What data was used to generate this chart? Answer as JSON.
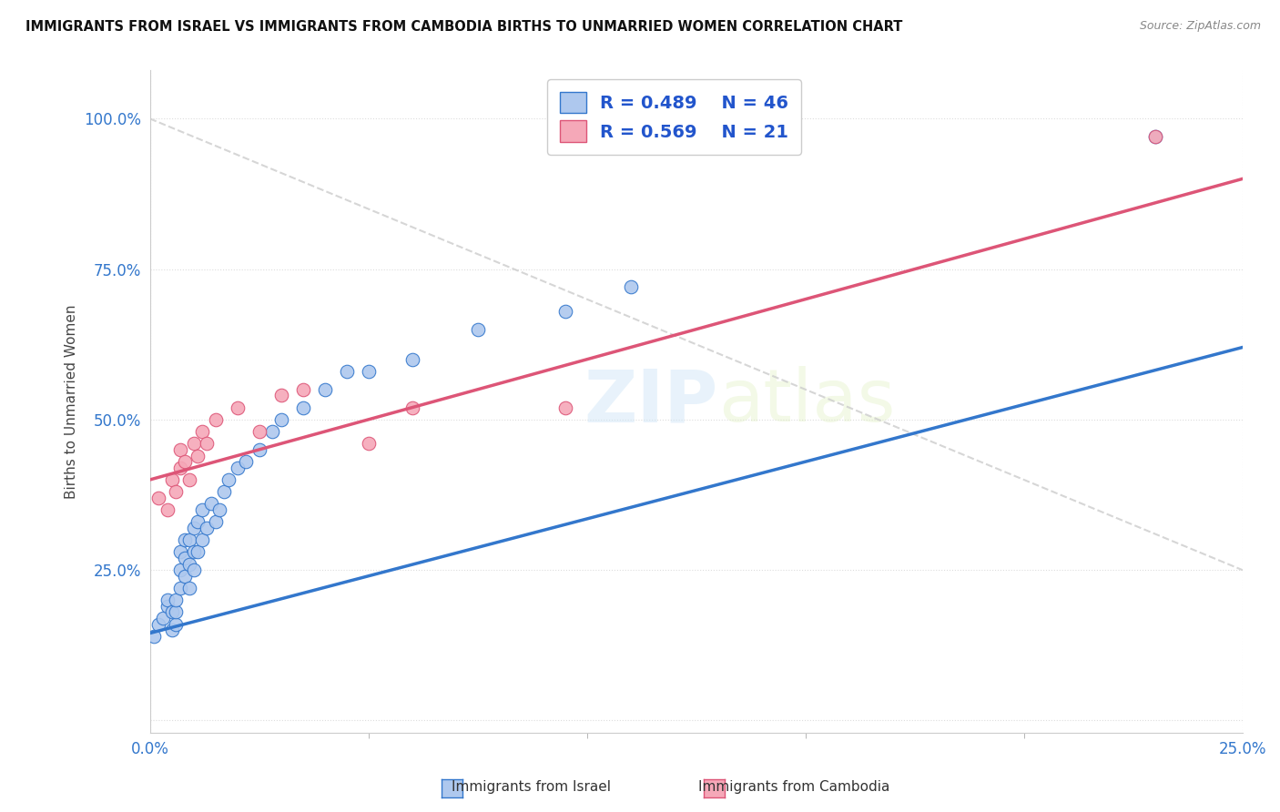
{
  "title": "IMMIGRANTS FROM ISRAEL VS IMMIGRANTS FROM CAMBODIA BIRTHS TO UNMARRIED WOMEN CORRELATION CHART",
  "source": "Source: ZipAtlas.com",
  "watermark": "ZIPatlas",
  "ylabel_label": "Births to Unmarried Women",
  "xlim": [
    0.0,
    0.25
  ],
  "ylim": [
    -0.02,
    1.08
  ],
  "yticks": [
    0.0,
    0.25,
    0.5,
    0.75,
    1.0
  ],
  "yticklabels": [
    "",
    "25.0%",
    "50.0%",
    "75.0%",
    "100.0%"
  ],
  "xticks": [
    0.0,
    0.25
  ],
  "xticklabels": [
    "0.0%",
    "25.0%"
  ],
  "legend_r1": "R = 0.489",
  "legend_n1": "N = 46",
  "legend_r2": "R = 0.569",
  "legend_n2": "N = 21",
  "color_israel": "#aec8ee",
  "color_cambodia": "#f5a8b8",
  "color_trendline_israel": "#3377cc",
  "color_trendline_cambodia": "#dd5577",
  "color_diag": "#cccccc",
  "background_color": "#ffffff",
  "israel_x": [
    0.001,
    0.002,
    0.003,
    0.004,
    0.004,
    0.005,
    0.005,
    0.006,
    0.006,
    0.006,
    0.007,
    0.007,
    0.007,
    0.008,
    0.008,
    0.008,
    0.009,
    0.009,
    0.009,
    0.01,
    0.01,
    0.01,
    0.011,
    0.011,
    0.012,
    0.012,
    0.013,
    0.014,
    0.015,
    0.016,
    0.017,
    0.018,
    0.02,
    0.022,
    0.025,
    0.028,
    0.03,
    0.035,
    0.04,
    0.045,
    0.05,
    0.06,
    0.075,
    0.095,
    0.11,
    0.23
  ],
  "israel_y": [
    0.14,
    0.16,
    0.17,
    0.19,
    0.2,
    0.15,
    0.18,
    0.16,
    0.18,
    0.2,
    0.22,
    0.25,
    0.28,
    0.24,
    0.27,
    0.3,
    0.22,
    0.26,
    0.3,
    0.25,
    0.28,
    0.32,
    0.28,
    0.33,
    0.3,
    0.35,
    0.32,
    0.36,
    0.33,
    0.35,
    0.38,
    0.4,
    0.42,
    0.43,
    0.45,
    0.48,
    0.5,
    0.52,
    0.55,
    0.58,
    0.58,
    0.6,
    0.65,
    0.68,
    0.72,
    0.97
  ],
  "cambodia_x": [
    0.002,
    0.004,
    0.005,
    0.006,
    0.007,
    0.007,
    0.008,
    0.009,
    0.01,
    0.011,
    0.012,
    0.013,
    0.015,
    0.02,
    0.025,
    0.03,
    0.035,
    0.05,
    0.06,
    0.095,
    0.23
  ],
  "cambodia_y": [
    0.37,
    0.35,
    0.4,
    0.38,
    0.42,
    0.45,
    0.43,
    0.4,
    0.46,
    0.44,
    0.48,
    0.46,
    0.5,
    0.52,
    0.48,
    0.54,
    0.55,
    0.46,
    0.52,
    0.52,
    0.97
  ],
  "trendline_israel_x0": 0.0,
  "trendline_israel_y0": 0.145,
  "trendline_israel_x1": 0.25,
  "trendline_israel_y1": 0.62,
  "trendline_cambodia_x0": 0.0,
  "trendline_cambodia_y0": 0.4,
  "trendline_cambodia_x1": 0.25,
  "trendline_cambodia_y1": 0.9,
  "dot_size": 110
}
